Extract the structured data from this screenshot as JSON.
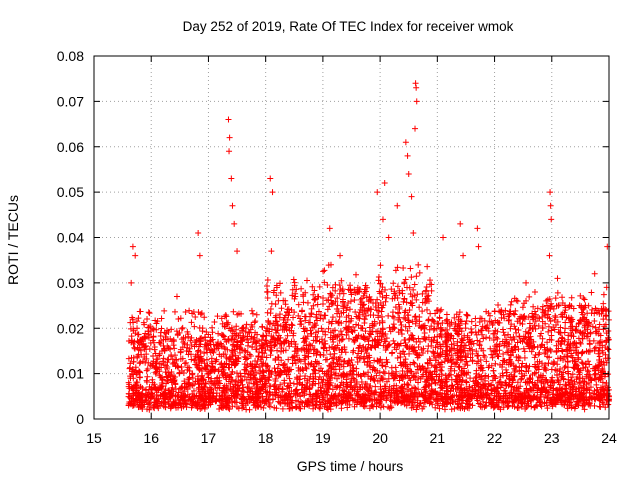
{
  "chart_data": {
    "type": "scatter",
    "title": "Day 252 of 2019, Rate Of TEC Index for receiver wmok",
    "xlabel": "GPS time / hours",
    "ylabel": "ROTI / TECUs",
    "xlim": [
      15,
      24
    ],
    "ylim": [
      0,
      0.08
    ],
    "xticks": [
      15,
      16,
      17,
      18,
      19,
      20,
      21,
      22,
      23,
      24
    ],
    "yticks": [
      0,
      0.01,
      0.02,
      0.03,
      0.04,
      0.05,
      0.06,
      0.07,
      0.08
    ],
    "xtick_labels": [
      "15",
      "16",
      "17",
      "18",
      "19",
      "20",
      "21",
      "22",
      "23",
      "24"
    ],
    "ytick_labels": [
      "0",
      "0.01",
      "0.02",
      "0.03",
      "0.04",
      "0.05",
      "0.06",
      "0.07",
      "0.08"
    ],
    "grid": true,
    "marker": "+",
    "color": "#ff0000",
    "data_range": [
      15.6,
      24
    ],
    "notes": "Dense cloud of several thousand points; baseline mostly 0.003-0.02 TECU with spikes listed in highlighted_points.",
    "highlighted_points": [
      {
        "x": 15.68,
        "y": 0.038
      },
      {
        "x": 15.72,
        "y": 0.036
      },
      {
        "x": 15.65,
        "y": 0.03
      },
      {
        "x": 16.45,
        "y": 0.027
      },
      {
        "x": 16.82,
        "y": 0.041
      },
      {
        "x": 16.85,
        "y": 0.036
      },
      {
        "x": 17.35,
        "y": 0.066
      },
      {
        "x": 17.37,
        "y": 0.062
      },
      {
        "x": 17.36,
        "y": 0.059
      },
      {
        "x": 17.4,
        "y": 0.053
      },
      {
        "x": 17.42,
        "y": 0.047
      },
      {
        "x": 17.45,
        "y": 0.043
      },
      {
        "x": 17.5,
        "y": 0.037
      },
      {
        "x": 18.08,
        "y": 0.053
      },
      {
        "x": 18.12,
        "y": 0.05
      },
      {
        "x": 18.1,
        "y": 0.037
      },
      {
        "x": 19.12,
        "y": 0.042
      },
      {
        "x": 19.3,
        "y": 0.036
      },
      {
        "x": 19.95,
        "y": 0.05
      },
      {
        "x": 20.08,
        "y": 0.052
      },
      {
        "x": 20.05,
        "y": 0.044
      },
      {
        "x": 20.15,
        "y": 0.04
      },
      {
        "x": 20.3,
        "y": 0.047
      },
      {
        "x": 20.45,
        "y": 0.061
      },
      {
        "x": 20.48,
        "y": 0.058
      },
      {
        "x": 20.5,
        "y": 0.054
      },
      {
        "x": 20.55,
        "y": 0.049
      },
      {
        "x": 20.58,
        "y": 0.041
      },
      {
        "x": 20.62,
        "y": 0.074
      },
      {
        "x": 20.63,
        "y": 0.073
      },
      {
        "x": 20.64,
        "y": 0.07
      },
      {
        "x": 20.61,
        "y": 0.064
      },
      {
        "x": 21.1,
        "y": 0.04
      },
      {
        "x": 21.4,
        "y": 0.043
      },
      {
        "x": 21.45,
        "y": 0.036
      },
      {
        "x": 21.7,
        "y": 0.042
      },
      {
        "x": 21.72,
        "y": 0.038
      },
      {
        "x": 22.55,
        "y": 0.03
      },
      {
        "x": 22.97,
        "y": 0.05
      },
      {
        "x": 22.98,
        "y": 0.047
      },
      {
        "x": 22.99,
        "y": 0.044
      },
      {
        "x": 22.96,
        "y": 0.036
      },
      {
        "x": 23.1,
        "y": 0.031
      },
      {
        "x": 23.75,
        "y": 0.032
      },
      {
        "x": 23.97,
        "y": 0.038
      },
      {
        "x": 23.96,
        "y": 0.029
      }
    ]
  }
}
